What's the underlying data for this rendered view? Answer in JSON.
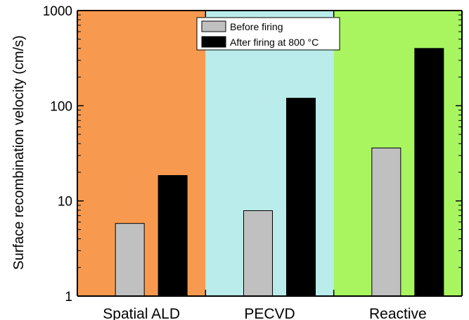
{
  "chart_data": {
    "type": "bar",
    "title": "",
    "xlabel": "",
    "ylabel": "Surface recombination velocity (cm/s)",
    "yscale": "log",
    "ylim": [
      1,
      1000
    ],
    "y_ticks": [
      1,
      10,
      100,
      1000
    ],
    "y_tick_labels": [
      "1",
      "10",
      "100",
      "1000"
    ],
    "categories": [
      "Spatial ALD",
      "PECVD",
      "Reactive"
    ],
    "category_backgrounds": [
      "#f79a50",
      "#b9ecea",
      "#a8f560"
    ],
    "series": [
      {
        "name": "Before firing",
        "color": "#c0c0c0",
        "values": [
          5.8,
          7.9,
          36
        ]
      },
      {
        "name": "After firing at 800 °C",
        "color": "#000000",
        "values": [
          18.5,
          120,
          400
        ]
      }
    ],
    "legend": {
      "position": "top-center",
      "entries": [
        "Before firing",
        "After firing at 800 °C"
      ]
    },
    "grid": false
  }
}
